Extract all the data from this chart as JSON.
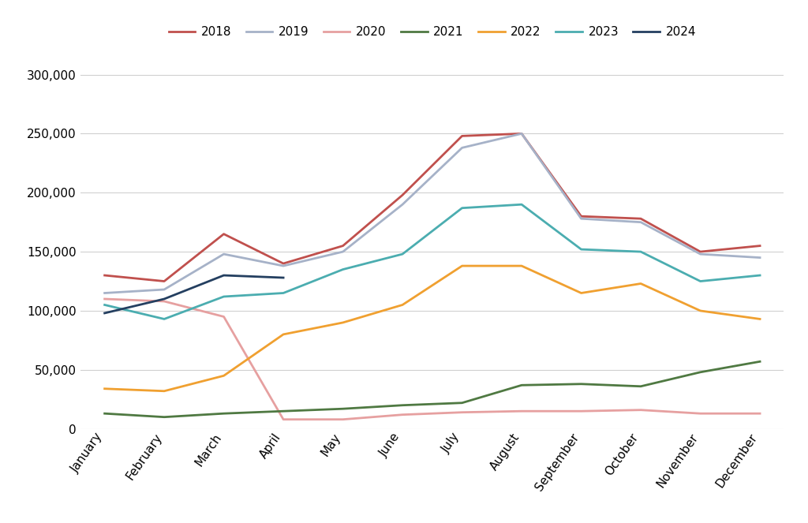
{
  "months": [
    "January",
    "February",
    "March",
    "April",
    "May",
    "June",
    "July",
    "August",
    "September",
    "October",
    "November",
    "December"
  ],
  "series": {
    "2018": [
      130000,
      125000,
      165000,
      140000,
      155000,
      198000,
      248000,
      250000,
      180000,
      178000,
      150000,
      155000
    ],
    "2019": [
      115000,
      118000,
      148000,
      138000,
      150000,
      190000,
      238000,
      250000,
      178000,
      175000,
      148000,
      145000
    ],
    "2020": [
      110000,
      108000,
      95000,
      8000,
      8000,
      12000,
      14000,
      15000,
      15000,
      16000,
      13000,
      13000
    ],
    "2021": [
      13000,
      10000,
      13000,
      15000,
      17000,
      20000,
      22000,
      37000,
      38000,
      36000,
      48000,
      57000
    ],
    "2022": [
      34000,
      32000,
      45000,
      80000,
      90000,
      105000,
      138000,
      138000,
      115000,
      123000,
      100000,
      93000
    ],
    "2023": [
      105000,
      93000,
      112000,
      115000,
      135000,
      148000,
      187000,
      190000,
      152000,
      150000,
      125000,
      130000
    ],
    "2024": [
      98000,
      110000,
      130000,
      128000,
      null,
      null,
      null,
      null,
      null,
      null,
      null,
      null
    ]
  },
  "colors": {
    "2018": "#c0504d",
    "2019": "#a6b2c8",
    "2020": "#e6a0a0",
    "2021": "#4f7942",
    "2022": "#f0a030",
    "2023": "#4badb0",
    "2024": "#243f60"
  },
  "ylim": [
    0,
    310000
  ],
  "yticks": [
    0,
    50000,
    100000,
    150000,
    200000,
    250000,
    300000
  ],
  "legend_order": [
    "2018",
    "2019",
    "2020",
    "2021",
    "2022",
    "2023",
    "2024"
  ],
  "line_width": 2.0,
  "background_color": "#ffffff",
  "grid_color": "#d0d0d0"
}
